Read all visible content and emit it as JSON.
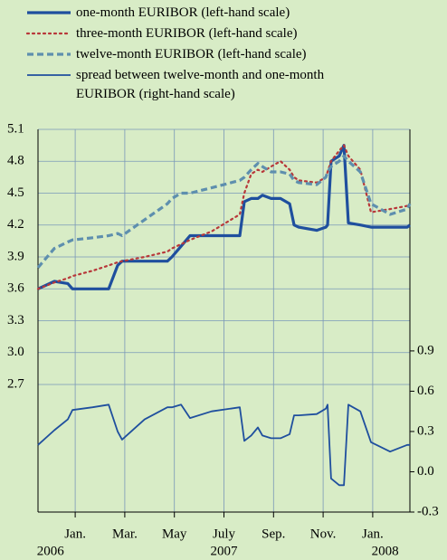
{
  "chart_data": {
    "type": "line",
    "x": [
      0,
      0.66,
      1.2,
      1.39,
      2.2,
      2.85,
      3.21,
      3.39,
      4.3,
      5.22,
      5.4,
      5.77,
      6.13,
      7.0,
      8.14,
      8.32,
      8.6,
      8.87,
      9.05,
      9.4,
      9.78,
      10.15,
      10.33,
      10.51,
      11.24,
      11.61,
      11.68,
      11.82,
      12.15,
      12.34,
      12.52,
      13.0,
      13.43,
      14.2,
      14.89,
      15
    ],
    "xlim": [
      0,
      15
    ],
    "xticks": [
      {
        "value": 1.5,
        "label": "Jan."
      },
      {
        "value": 3.5,
        "label": "Mar."
      },
      {
        "value": 5.5,
        "label": "May"
      },
      {
        "value": 7.5,
        "label": "July"
      },
      {
        "value": 9.5,
        "label": "Sep."
      },
      {
        "value": 11.5,
        "label": "Nov."
      },
      {
        "value": 13.5,
        "label": "Jan."
      }
    ],
    "year_labels": [
      {
        "value": 0.5,
        "label": "2006"
      },
      {
        "value": 7.5,
        "label": "2007"
      },
      {
        "value": 14,
        "label": "2008"
      }
    ],
    "ylim": [
      1.5,
      5.1
    ],
    "yticks": [
      {
        "value": 2.7,
        "label": "2.7"
      },
      {
        "value": 3.0,
        "label": "3.0"
      },
      3.3,
      3.6,
      3.9,
      4.2,
      4.5,
      4.8,
      5.1
    ],
    "y2lim": [
      -0.3,
      2.55
    ],
    "y2ticks": [
      {
        "value": -0.3,
        "label": "-0.3"
      },
      {
        "value": 0,
        "label": "0.0"
      },
      {
        "value": 0.3,
        "label": "0.3"
      },
      {
        "value": 0.6,
        "label": "0.6"
      },
      {
        "value": 0.9,
        "label": "0.9"
      }
    ],
    "grid": true,
    "series": [
      {
        "name": "one-month EURIBOR (left-hand scale)",
        "color": "#1f4f9e",
        "style": "solid-thick",
        "values": [
          3.6,
          3.67,
          3.65,
          3.6,
          3.6,
          3.6,
          3.82,
          3.86,
          3.86,
          3.86,
          3.9,
          4.0,
          4.1,
          4.1,
          4.1,
          4.42,
          4.45,
          4.45,
          4.48,
          4.45,
          4.45,
          4.4,
          4.2,
          4.18,
          4.15,
          4.18,
          4.2,
          4.8,
          4.85,
          4.95,
          4.22,
          4.2,
          4.18,
          4.18,
          4.18,
          4.2
        ]
      },
      {
        "name": "three-month EURIBOR (left-hand scale)",
        "color": "#b8383a",
        "style": "dotted",
        "values": [
          3.6,
          3.66,
          3.7,
          3.72,
          3.77,
          3.82,
          3.85,
          3.86,
          3.9,
          3.95,
          3.98,
          4.02,
          4.06,
          4.14,
          4.3,
          4.5,
          4.68,
          4.72,
          4.7,
          4.75,
          4.8,
          4.72,
          4.65,
          4.62,
          4.6,
          4.65,
          4.7,
          4.8,
          4.9,
          4.95,
          4.85,
          4.72,
          4.32,
          4.35,
          4.38,
          4.4
        ]
      },
      {
        "name": "twelve-month EURIBOR (left-hand scale)",
        "color": "#5e8fae",
        "style": "dashed",
        "values": [
          3.8,
          3.98,
          4.04,
          4.06,
          4.08,
          4.1,
          4.12,
          4.1,
          4.25,
          4.4,
          4.45,
          4.5,
          4.5,
          4.55,
          4.62,
          4.65,
          4.72,
          4.78,
          4.75,
          4.7,
          4.7,
          4.68,
          4.62,
          4.6,
          4.58,
          4.65,
          4.7,
          4.75,
          4.8,
          4.85,
          4.8,
          4.7,
          4.4,
          4.3,
          4.35,
          4.4
        ]
      },
      {
        "name": "spread between twelve-month and one-month EURIBOR (right-hand scale)",
        "color": "#1f4f9e",
        "style": "solid",
        "axis": "y2",
        "values": [
          0.2,
          0.31,
          0.39,
          0.46,
          0.48,
          0.5,
          0.3,
          0.24,
          0.39,
          0.48,
          0.48,
          0.5,
          0.4,
          0.45,
          0.48,
          0.23,
          0.27,
          0.33,
          0.27,
          0.25,
          0.25,
          0.28,
          0.42,
          0.42,
          0.43,
          0.47,
          0.5,
          -0.05,
          -0.1,
          -0.1,
          0.5,
          0.45,
          0.22,
          0.15,
          0.2,
          0.2
        ]
      }
    ]
  }
}
